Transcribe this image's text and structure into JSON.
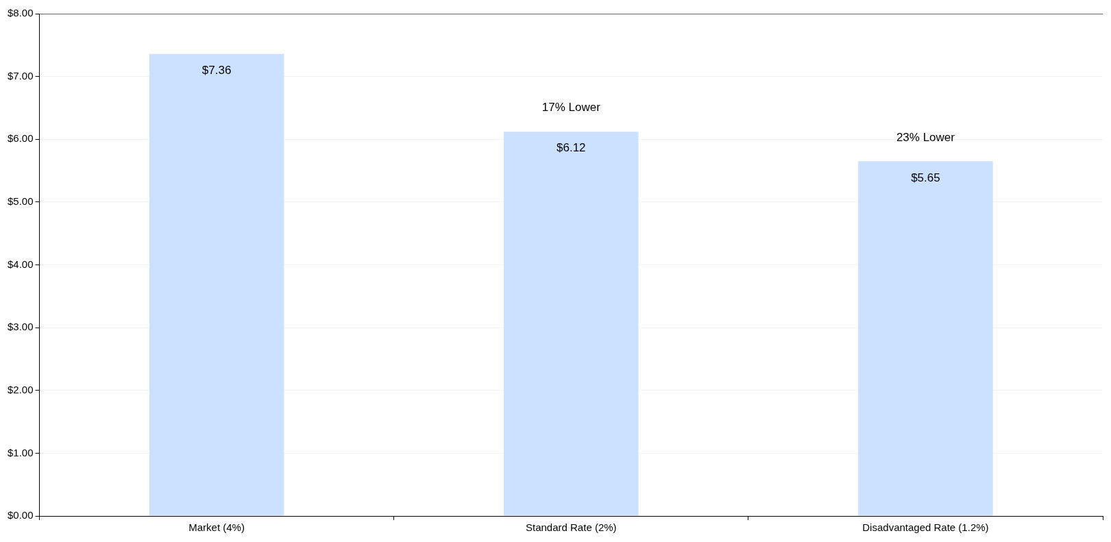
{
  "chart_data": {
    "type": "bar",
    "categories": [
      "Market (4%)",
      "Standard Rate (2%)",
      "Disadvantaged Rate (1.2%)"
    ],
    "values": [
      7.36,
      6.12,
      5.65
    ],
    "value_labels": [
      "$7.36",
      "$6.12",
      "$5.65"
    ],
    "color": "#cce0ff",
    "ylim": [
      0,
      8
    ],
    "yticks": [
      {
        "value": 0,
        "label": "$0.00"
      },
      {
        "value": 1,
        "label": "$1.00"
      },
      {
        "value": 2,
        "label": "$2.00"
      },
      {
        "value": 3,
        "label": "$3.00"
      },
      {
        "value": 4,
        "label": "$4.00"
      },
      {
        "value": 5,
        "label": "$5.00"
      },
      {
        "value": 6,
        "label": "$6.00"
      },
      {
        "value": 7,
        "label": "$7.00"
      },
      {
        "value": 8,
        "label": "$8.00"
      }
    ],
    "annotations": [
      {
        "text": "17% Lower",
        "x": "Standard Rate (2%)",
        "y": 6.12
      },
      {
        "text": "23% Lower",
        "x": "Disadvantaged Rate (1.2%)",
        "y": 5.65
      }
    ],
    "grid": "y",
    "legend": false
  }
}
